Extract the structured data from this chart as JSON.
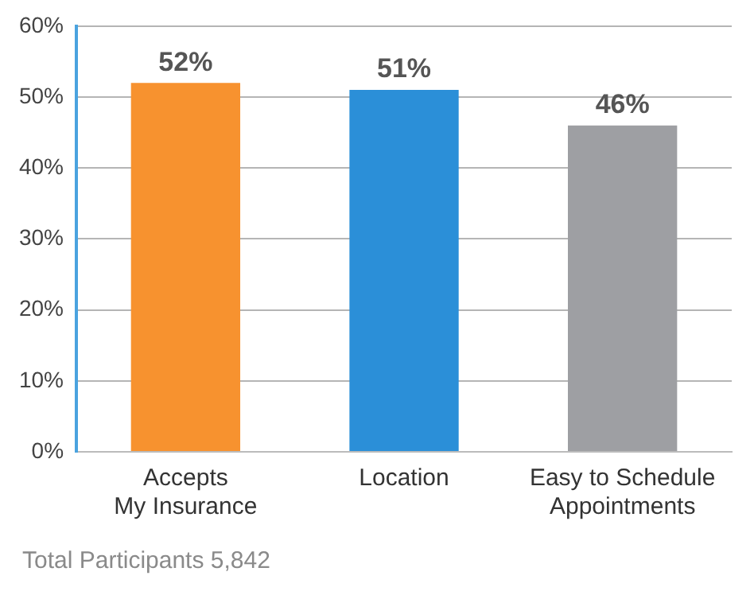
{
  "chart_data": {
    "type": "bar",
    "categories": [
      "Accepts\nMy Insurance",
      "Location",
      "Easy to Schedule\nAppointments"
    ],
    "values": [
      52,
      51,
      46
    ],
    "colors": [
      "#f7922f",
      "#2b8fd8",
      "#9e9fa3"
    ],
    "value_labels": [
      "52%",
      "51%",
      "46%"
    ],
    "ylim": [
      0,
      60
    ],
    "yticks": [
      {
        "value": 0,
        "label": "0%"
      },
      {
        "value": 10,
        "label": "10%"
      },
      {
        "value": 20,
        "label": "20%"
      },
      {
        "value": 30,
        "label": "30%"
      },
      {
        "value": 40,
        "label": "40%"
      },
      {
        "value": 50,
        "label": "50%"
      },
      {
        "value": 60,
        "label": "60%"
      }
    ],
    "grid": "y",
    "annotations": [
      "Total Participants 5,842"
    ]
  }
}
